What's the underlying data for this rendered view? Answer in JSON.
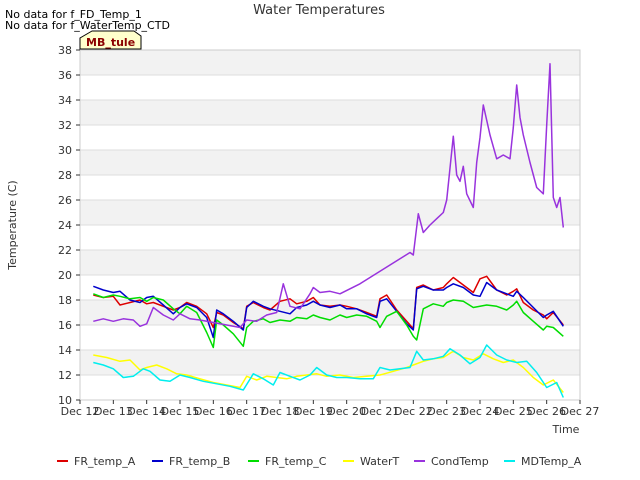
{
  "notes": [
    "No data for f_FD_Temp_1",
    "No data for f_WaterTemp_CTD"
  ],
  "station_label": "MB_tule",
  "chart_data": {
    "type": "line",
    "title": "Water Temperatures",
    "xlabel": "Time",
    "ylabel": "Temperature (C)",
    "xlim": [
      12,
      27
    ],
    "ylim": [
      10,
      38
    ],
    "x_ticks": [
      12,
      13,
      14,
      15,
      16,
      17,
      18,
      19,
      20,
      21,
      22,
      23,
      24,
      25,
      26,
      27
    ],
    "x_tick_labels": [
      "Dec 12",
      "Dec 13",
      "Dec 14",
      "Dec 15",
      "Dec 16",
      "Dec 17",
      "Dec 18",
      "Dec 19",
      "Dec 20",
      "Dec 21",
      "Dec 22",
      "Dec 23",
      "Dec 24",
      "Dec 25",
      "Dec 26",
      "Dec 27"
    ],
    "y_ticks": [
      10,
      12,
      14,
      16,
      18,
      20,
      22,
      24,
      26,
      28,
      30,
      32,
      34,
      36,
      38
    ],
    "y_tick_labels": [
      "10",
      "12",
      "14",
      "16",
      "18",
      "20",
      "22",
      "24",
      "26",
      "28",
      "30",
      "32",
      "34",
      "36",
      "38"
    ],
    "grid": true,
    "legend_position": "bottom",
    "series": [
      {
        "name": "FR_temp_A",
        "color": "#dd0000",
        "x": [
          12.4,
          12.7,
          13.0,
          13.2,
          13.5,
          13.8,
          14.0,
          14.2,
          14.5,
          14.8,
          15.0,
          15.2,
          15.5,
          15.8,
          16.0,
          16.1,
          16.3,
          16.6,
          16.9,
          17.0,
          17.2,
          17.5,
          17.7,
          18.0,
          18.3,
          18.5,
          18.8,
          19.0,
          19.2,
          19.5,
          19.8,
          20.0,
          20.3,
          20.6,
          20.9,
          21.0,
          21.2,
          21.5,
          21.8,
          22.0,
          22.1,
          22.3,
          22.6,
          22.9,
          23.0,
          23.2,
          23.5,
          23.8,
          24.0,
          24.2,
          24.5,
          24.8,
          25.0,
          25.1,
          25.3,
          25.6,
          25.9,
          26.0,
          26.2,
          26.5
        ],
        "y": [
          18.4,
          18.2,
          18.3,
          17.6,
          17.8,
          18.0,
          17.7,
          17.8,
          17.5,
          17.2,
          17.4,
          17.8,
          17.5,
          16.9,
          15.8,
          17.0,
          16.8,
          16.2,
          15.7,
          17.5,
          17.8,
          17.4,
          17.2,
          17.9,
          18.1,
          17.7,
          17.9,
          18.2,
          17.6,
          17.5,
          17.6,
          17.5,
          17.3,
          17.0,
          16.7,
          18.1,
          18.4,
          17.2,
          16.3,
          15.7,
          19.0,
          19.2,
          18.8,
          19.0,
          19.3,
          19.8,
          19.2,
          18.6,
          19.7,
          19.9,
          18.8,
          18.4,
          18.7,
          18.9,
          17.8,
          17.2,
          16.8,
          16.5,
          17.0,
          16.0
        ]
      },
      {
        "name": "FR_temp_B",
        "color": "#0000cc",
        "x": [
          12.4,
          12.7,
          13.0,
          13.2,
          13.5,
          13.8,
          14.0,
          14.2,
          14.5,
          14.8,
          15.0,
          15.2,
          15.5,
          15.8,
          16.0,
          16.1,
          16.3,
          16.6,
          16.9,
          17.0,
          17.2,
          17.5,
          17.7,
          18.0,
          18.3,
          18.5,
          18.8,
          19.0,
          19.2,
          19.5,
          19.8,
          20.0,
          20.3,
          20.6,
          20.9,
          21.0,
          21.2,
          21.5,
          21.8,
          22.0,
          22.1,
          22.3,
          22.6,
          22.9,
          23.0,
          23.2,
          23.5,
          23.8,
          24.0,
          24.2,
          24.5,
          24.8,
          25.0,
          25.1,
          25.3,
          25.6,
          25.9,
          26.0,
          26.2,
          26.5
        ],
        "y": [
          19.1,
          18.8,
          18.6,
          18.7,
          18.0,
          17.8,
          18.2,
          18.3,
          17.6,
          16.9,
          17.4,
          17.7,
          17.4,
          16.6,
          15.0,
          17.2,
          16.9,
          16.3,
          15.6,
          17.4,
          17.9,
          17.5,
          17.3,
          17.1,
          16.9,
          17.4,
          17.6,
          17.9,
          17.6,
          17.4,
          17.6,
          17.3,
          17.3,
          16.9,
          16.6,
          17.9,
          18.1,
          17.1,
          16.1,
          15.6,
          18.9,
          19.1,
          18.8,
          18.8,
          19.0,
          19.3,
          19.0,
          18.4,
          18.3,
          19.4,
          18.8,
          18.5,
          18.3,
          18.7,
          18.2,
          17.4,
          16.6,
          16.8,
          17.1,
          15.9
        ]
      },
      {
        "name": "FR_temp_C",
        "color": "#00dd00",
        "x": [
          12.4,
          12.7,
          13.0,
          13.2,
          13.5,
          13.8,
          14.0,
          14.2,
          14.5,
          14.8,
          15.0,
          15.2,
          15.5,
          15.8,
          16.0,
          16.1,
          16.3,
          16.6,
          16.9,
          17.0,
          17.2,
          17.5,
          17.7,
          18.0,
          18.3,
          18.5,
          18.8,
          19.0,
          19.2,
          19.5,
          19.8,
          20.0,
          20.3,
          20.6,
          20.9,
          21.0,
          21.2,
          21.5,
          21.8,
          22.0,
          22.1,
          22.3,
          22.6,
          22.9,
          23.0,
          23.2,
          23.5,
          23.8,
          24.0,
          24.2,
          24.5,
          24.8,
          25.0,
          25.1,
          25.3,
          25.6,
          25.9,
          26.0,
          26.2,
          26.5
        ],
        "y": [
          18.5,
          18.2,
          18.4,
          18.3,
          18.1,
          18.2,
          17.9,
          18.2,
          18.0,
          17.3,
          16.9,
          17.5,
          17.0,
          15.4,
          14.2,
          16.4,
          16.0,
          15.3,
          14.3,
          15.8,
          16.3,
          16.5,
          16.2,
          16.4,
          16.3,
          16.6,
          16.5,
          16.8,
          16.6,
          16.4,
          16.8,
          16.6,
          16.8,
          16.7,
          16.3,
          15.8,
          16.7,
          17.1,
          16.0,
          15.1,
          14.8,
          17.3,
          17.7,
          17.5,
          17.8,
          18.0,
          17.9,
          17.4,
          17.5,
          17.6,
          17.5,
          17.2,
          17.6,
          17.9,
          17.0,
          16.3,
          15.6,
          15.9,
          15.8,
          15.1
        ]
      },
      {
        "name": "WaterT",
        "color": "#ffff00",
        "x": [
          12.4,
          12.8,
          13.2,
          13.5,
          13.8,
          14.0,
          14.3,
          14.6,
          14.9,
          15.2,
          15.6,
          16.0,
          16.4,
          16.8,
          17.0,
          17.3,
          17.6,
          17.9,
          18.2,
          18.5,
          18.8,
          19.1,
          19.4,
          19.8,
          20.2,
          20.6,
          21.0,
          21.4,
          21.8,
          22.0,
          22.3,
          22.6,
          22.9,
          23.2,
          23.5,
          23.8,
          24.1,
          24.4,
          24.7,
          25.0,
          25.3,
          25.6,
          25.9,
          26.2,
          26.5
        ],
        "y": [
          13.6,
          13.4,
          13.1,
          13.2,
          12.4,
          12.6,
          12.8,
          12.5,
          12.1,
          12.0,
          11.7,
          11.4,
          11.2,
          11.0,
          11.9,
          11.6,
          11.9,
          11.8,
          11.7,
          11.9,
          12.0,
          12.1,
          11.9,
          12.0,
          11.8,
          11.9,
          12.0,
          12.3,
          12.6,
          12.8,
          13.1,
          13.3,
          13.4,
          13.9,
          13.4,
          13.2,
          13.7,
          13.3,
          13.0,
          13.2,
          12.6,
          11.8,
          11.2,
          11.6,
          10.6
        ]
      },
      {
        "name": "CondTemp",
        "color": "#9933dd",
        "x": [
          12.4,
          12.7,
          13.0,
          13.3,
          13.6,
          13.8,
          14.0,
          14.2,
          14.5,
          14.8,
          15.0,
          15.3,
          15.6,
          16.0,
          16.4,
          16.8,
          17.0,
          17.3,
          17.6,
          17.9,
          18.1,
          18.3,
          18.6,
          18.9,
          19.0,
          19.2,
          19.5,
          19.8,
          20.1,
          20.4,
          20.7,
          21.0,
          21.3,
          21.6,
          21.9,
          22.0,
          22.15,
          22.3,
          22.5,
          22.7,
          22.9,
          23.0,
          23.2,
          23.3,
          23.4,
          23.5,
          23.6,
          23.8,
          23.9,
          24.0,
          24.1,
          24.3,
          24.5,
          24.7,
          24.9,
          25.0,
          25.1,
          25.2,
          25.3,
          25.5,
          25.7,
          25.9,
          26.0,
          26.1,
          26.2,
          26.3,
          26.4,
          26.5
        ],
        "y": [
          16.3,
          16.5,
          16.3,
          16.5,
          16.4,
          15.9,
          16.1,
          17.4,
          16.8,
          16.4,
          16.9,
          16.5,
          16.4,
          16.2,
          16.0,
          15.8,
          16.4,
          16.3,
          16.8,
          17.0,
          19.3,
          17.5,
          17.3,
          18.5,
          19.0,
          18.6,
          18.7,
          18.5,
          18.9,
          19.3,
          19.8,
          20.3,
          20.8,
          21.3,
          21.8,
          21.6,
          24.9,
          23.4,
          24.0,
          24.5,
          25.0,
          26.0,
          31.1,
          28.0,
          27.5,
          28.7,
          26.5,
          25.4,
          29.0,
          31.0,
          33.6,
          31.2,
          29.3,
          29.6,
          29.3,
          31.8,
          35.2,
          32.6,
          31.2,
          29.0,
          27.0,
          26.5,
          32.0,
          36.9,
          26.2,
          25.4,
          26.2,
          23.8
        ]
      },
      {
        "name": "MDTemp_A",
        "color": "#00eeee",
        "x": [
          12.4,
          12.7,
          13.0,
          13.3,
          13.6,
          13.9,
          14.1,
          14.4,
          14.7,
          15.0,
          15.3,
          15.7,
          16.1,
          16.5,
          16.9,
          17.2,
          17.5,
          17.8,
          18.0,
          18.3,
          18.6,
          18.9,
          19.1,
          19.4,
          19.7,
          20.0,
          20.4,
          20.8,
          21.0,
          21.3,
          21.6,
          21.9,
          22.1,
          22.3,
          22.6,
          22.9,
          23.1,
          23.4,
          23.7,
          24.0,
          24.2,
          24.5,
          24.8,
          25.1,
          25.4,
          25.7,
          26.0,
          26.3,
          26.5
        ],
        "y": [
          13.0,
          12.8,
          12.5,
          11.8,
          11.9,
          12.5,
          12.3,
          11.6,
          11.5,
          12.0,
          11.8,
          11.5,
          11.3,
          11.1,
          10.8,
          12.1,
          11.7,
          11.2,
          12.2,
          11.9,
          11.6,
          12.0,
          12.6,
          12.0,
          11.8,
          11.8,
          11.7,
          11.7,
          12.6,
          12.4,
          12.5,
          12.6,
          13.9,
          13.2,
          13.3,
          13.5,
          14.1,
          13.6,
          12.9,
          13.4,
          14.4,
          13.6,
          13.2,
          13.0,
          13.1,
          12.2,
          11.0,
          11.4,
          10.2
        ]
      }
    ]
  }
}
